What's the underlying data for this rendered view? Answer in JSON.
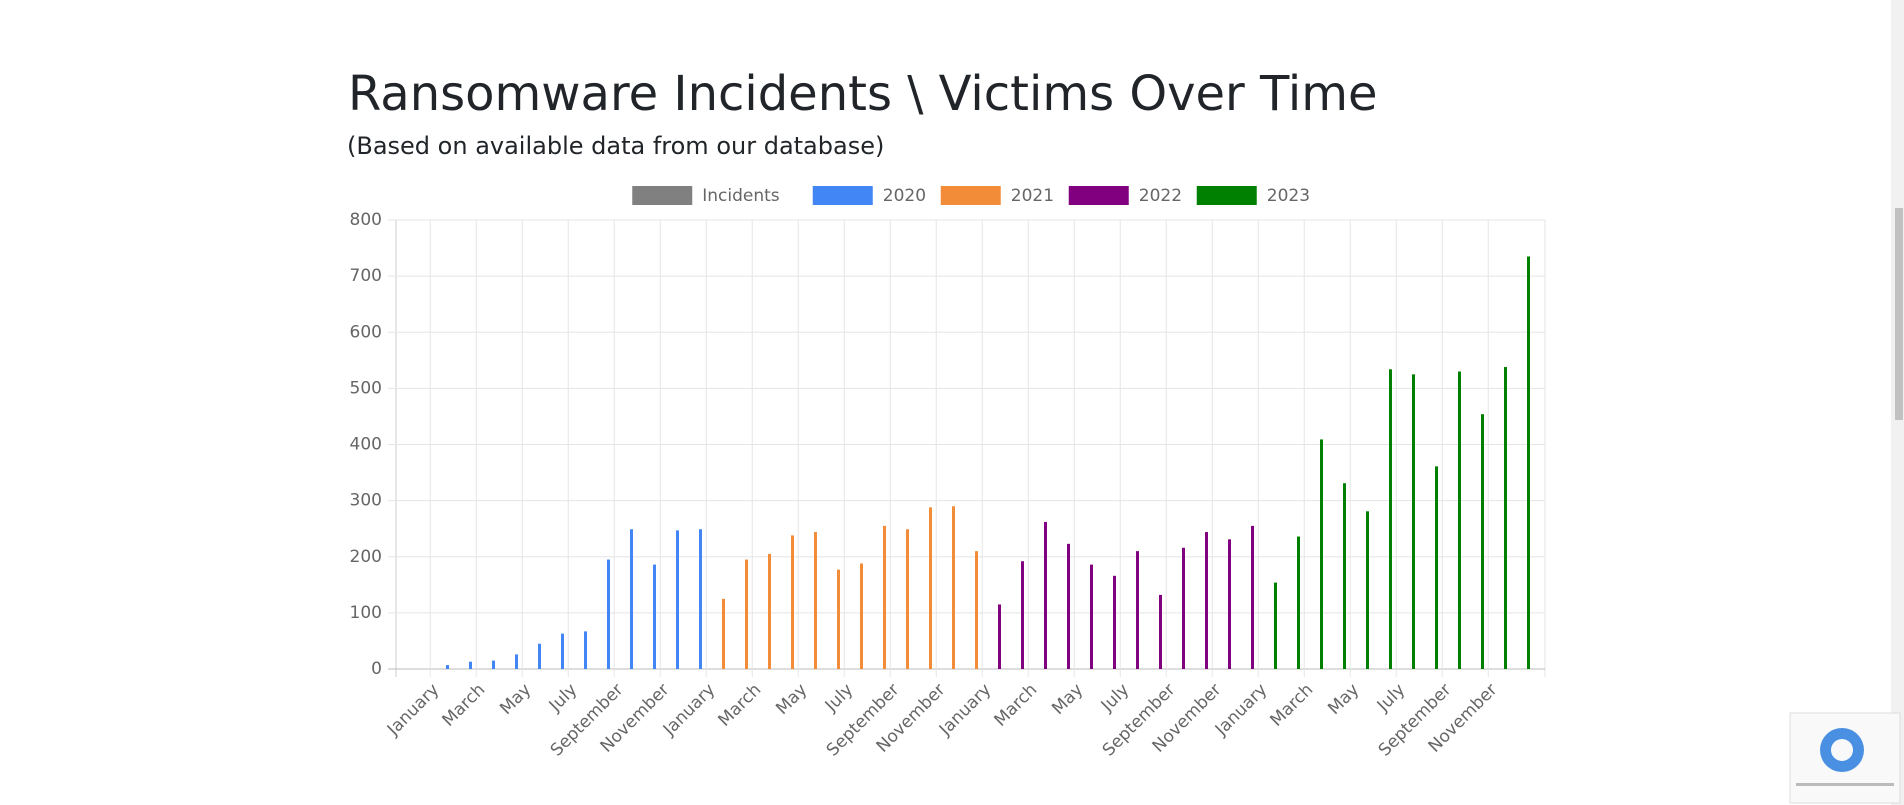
{
  "chart_data": {
    "type": "bar",
    "title": "Ransomware Incidents \\ Victims Over Time",
    "subtitle": "(Based on available data from our database)",
    "categories": [
      "January",
      null,
      "March",
      null,
      "May",
      null,
      "July",
      null,
      "September",
      null,
      "November",
      null,
      "January",
      null,
      "March",
      null,
      "May",
      null,
      "July",
      null,
      "September",
      null,
      "November",
      null,
      "January",
      null,
      "March",
      null,
      "May",
      null,
      "July",
      null,
      "September",
      null,
      "November",
      null,
      "January",
      null,
      "March",
      null,
      "May",
      null,
      "July",
      null,
      "September",
      null,
      "November",
      null
    ],
    "series": [
      {
        "name": "Incidents",
        "color": "#808080",
        "values": [
          null,
          null,
          null,
          null,
          null,
          null,
          null,
          null,
          null,
          null,
          null,
          null,
          null,
          null,
          null,
          null,
          null,
          null,
          null,
          null,
          null,
          null,
          null,
          null,
          null,
          null,
          null,
          null,
          null,
          null,
          null,
          null,
          null,
          null,
          null,
          null,
          null,
          null,
          null,
          null,
          null,
          null,
          null,
          null,
          null,
          null,
          null,
          null
        ]
      },
      {
        "name": "2020",
        "color": "#4285f4",
        "values": [
          7,
          13,
          15,
          26,
          45,
          63,
          67,
          195,
          249,
          186,
          247,
          249,
          null,
          null,
          null,
          null,
          null,
          null,
          null,
          null,
          null,
          null,
          null,
          null,
          null,
          null,
          null,
          null,
          null,
          null,
          null,
          null,
          null,
          null,
          null,
          null,
          null,
          null,
          null,
          null,
          null,
          null,
          null,
          null,
          null,
          null,
          null,
          null
        ]
      },
      {
        "name": "2021",
        "color": "#f28c38",
        "values": [
          null,
          null,
          null,
          null,
          null,
          null,
          null,
          null,
          null,
          null,
          null,
          null,
          125,
          195,
          205,
          238,
          244,
          177,
          188,
          255,
          249,
          288,
          290,
          210,
          null,
          null,
          null,
          null,
          null,
          null,
          null,
          null,
          null,
          null,
          null,
          null,
          null,
          null,
          null,
          null,
          null,
          null,
          null,
          null,
          null,
          null,
          null,
          null
        ]
      },
      {
        "name": "2022",
        "color": "#800080",
        "values": [
          null,
          null,
          null,
          null,
          null,
          null,
          null,
          null,
          null,
          null,
          null,
          null,
          null,
          null,
          null,
          null,
          null,
          null,
          null,
          null,
          null,
          null,
          null,
          null,
          115,
          192,
          262,
          223,
          186,
          166,
          210,
          132,
          216,
          244,
          231,
          255,
          null,
          null,
          null,
          null,
          null,
          null,
          null,
          null,
          null,
          null,
          null,
          null
        ]
      },
      {
        "name": "2023",
        "color": "#008000",
        "values": [
          null,
          null,
          null,
          null,
          null,
          null,
          null,
          null,
          null,
          null,
          null,
          null,
          null,
          null,
          null,
          null,
          null,
          null,
          null,
          null,
          null,
          null,
          null,
          null,
          null,
          null,
          null,
          null,
          null,
          null,
          null,
          null,
          null,
          null,
          null,
          null,
          154,
          236,
          409,
          331,
          281,
          534,
          525,
          361,
          530,
          454,
          538,
          735
        ]
      }
    ],
    "ylim": [
      0,
      800
    ],
    "yticks": [
      0,
      100,
      200,
      300,
      400,
      500,
      600,
      700,
      800
    ],
    "grid": true,
    "legend": "top"
  }
}
